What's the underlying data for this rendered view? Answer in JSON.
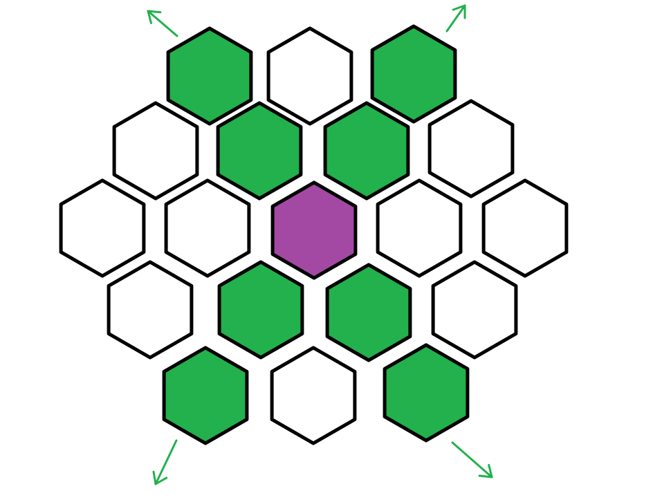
{
  "colors": {
    "background": "#ffffff",
    "outline": "#000000",
    "green": "#22b14c",
    "purple": "#a349a4",
    "empty": "#ffffff",
    "arrow": "#22b14c"
  },
  "board": {
    "rows": [
      {
        "row": 1,
        "cells": [
          "green",
          "empty",
          "green"
        ]
      },
      {
        "row": 2,
        "cells": [
          "empty",
          "green",
          "green",
          "empty"
        ]
      },
      {
        "row": 3,
        "cells": [
          "empty",
          "empty",
          "purple",
          "empty",
          "empty"
        ]
      },
      {
        "row": 4,
        "cells": [
          "empty",
          "green",
          "green",
          "empty"
        ]
      },
      {
        "row": 5,
        "cells": [
          "green",
          "empty",
          "green"
        ]
      }
    ],
    "arrows": [
      "up-left",
      "up-right",
      "down-left",
      "down-right"
    ]
  }
}
